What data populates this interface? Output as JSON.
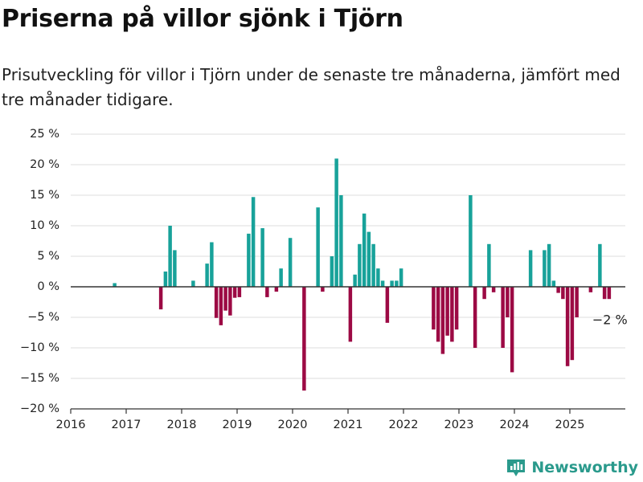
{
  "title": "Priserna på villor sjönk i Tjörn",
  "subtitle": "Prisutveckling för villor i Tjörn under de senaste tre månaderna, jämfört med tre månader tidigare.",
  "brand": {
    "name": "Newsworthy",
    "logo_icon": "newsworthy-logo-icon"
  },
  "colors": {
    "positive": "#18a29a",
    "negative": "#9c0a44",
    "grid": "#dddddd",
    "zero_line": "#333333"
  },
  "chart_data": {
    "type": "bar",
    "title": "",
    "xlabel": "",
    "ylabel": "",
    "ylim": [
      -20,
      25
    ],
    "yticks": [
      -20,
      -15,
      -10,
      -5,
      0,
      5,
      10,
      15,
      20,
      25
    ],
    "ytick_labels": [
      "−20 %",
      "−15 %",
      "−10 %",
      "−5 %",
      "0 %",
      "5 %",
      "10 %",
      "15 %",
      "20 %",
      "25 %"
    ],
    "xlim": [
      "2016-01",
      "2026-01"
    ],
    "xticks": [
      "2016",
      "2017",
      "2018",
      "2019",
      "2020",
      "2021",
      "2022",
      "2023",
      "2024",
      "2025"
    ],
    "grid": true,
    "end_label": "−2 %",
    "series": [
      {
        "points": [
          {
            "x": "2016-10",
            "y": 0.6
          },
          {
            "x": "2017-08",
            "y": -3.7
          },
          {
            "x": "2017-09",
            "y": 2.5
          },
          {
            "x": "2017-10",
            "y": 10.0
          },
          {
            "x": "2017-11",
            "y": 6.0
          },
          {
            "x": "2018-03",
            "y": 1.0
          },
          {
            "x": "2018-06",
            "y": 3.8
          },
          {
            "x": "2018-07",
            "y": 7.3
          },
          {
            "x": "2018-08",
            "y": -5.1
          },
          {
            "x": "2018-09",
            "y": -6.3
          },
          {
            "x": "2018-10",
            "y": -3.9
          },
          {
            "x": "2018-11",
            "y": -4.7
          },
          {
            "x": "2018-12",
            "y": -1.8
          },
          {
            "x": "2019-01",
            "y": -1.7
          },
          {
            "x": "2019-03",
            "y": 8.7
          },
          {
            "x": "2019-04",
            "y": 14.7
          },
          {
            "x": "2019-06",
            "y": 9.6
          },
          {
            "x": "2019-07",
            "y": -1.7
          },
          {
            "x": "2019-09",
            "y": -0.8
          },
          {
            "x": "2019-10",
            "y": 3.0
          },
          {
            "x": "2019-12",
            "y": 8.0
          },
          {
            "x": "2020-03",
            "y": -17.0
          },
          {
            "x": "2020-06",
            "y": 13.0
          },
          {
            "x": "2020-07",
            "y": -0.8
          },
          {
            "x": "2020-09",
            "y": 5.0
          },
          {
            "x": "2020-10",
            "y": 21.0
          },
          {
            "x": "2020-11",
            "y": 15.0
          },
          {
            "x": "2021-01",
            "y": -9.0
          },
          {
            "x": "2021-02",
            "y": 2.0
          },
          {
            "x": "2021-03",
            "y": 7.0
          },
          {
            "x": "2021-04",
            "y": 12.0
          },
          {
            "x": "2021-05",
            "y": 9.0
          },
          {
            "x": "2021-06",
            "y": 7.0
          },
          {
            "x": "2021-07",
            "y": 3.0
          },
          {
            "x": "2021-08",
            "y": 1.0
          },
          {
            "x": "2021-09",
            "y": -5.9
          },
          {
            "x": "2021-10",
            "y": 1.0
          },
          {
            "x": "2021-11",
            "y": 1.0
          },
          {
            "x": "2021-12",
            "y": 3.0
          },
          {
            "x": "2022-07",
            "y": -7.0
          },
          {
            "x": "2022-08",
            "y": -9.0
          },
          {
            "x": "2022-09",
            "y": -11.0
          },
          {
            "x": "2022-10",
            "y": -8.0
          },
          {
            "x": "2022-11",
            "y": -9.0
          },
          {
            "x": "2022-12",
            "y": -7.0
          },
          {
            "x": "2023-03",
            "y": 15.0
          },
          {
            "x": "2023-04",
            "y": -10.0
          },
          {
            "x": "2023-06",
            "y": -2.0
          },
          {
            "x": "2023-07",
            "y": 7.0
          },
          {
            "x": "2023-08",
            "y": -0.9
          },
          {
            "x": "2023-10",
            "y": -10.0
          },
          {
            "x": "2023-11",
            "y": -5.0
          },
          {
            "x": "2023-12",
            "y": -14.0
          },
          {
            "x": "2024-04",
            "y": 6.0
          },
          {
            "x": "2024-07",
            "y": 6.0
          },
          {
            "x": "2024-08",
            "y": 7.0
          },
          {
            "x": "2024-09",
            "y": 1.0
          },
          {
            "x": "2024-10",
            "y": -1.0
          },
          {
            "x": "2024-11",
            "y": -2.0
          },
          {
            "x": "2024-12",
            "y": -13.0
          },
          {
            "x": "2025-01",
            "y": -12.0
          },
          {
            "x": "2025-02",
            "y": -5.0
          },
          {
            "x": "2025-05",
            "y": -0.9
          },
          {
            "x": "2025-07",
            "y": 7.0
          },
          {
            "x": "2025-08",
            "y": -2.0
          },
          {
            "x": "2025-09",
            "y": -2.0
          }
        ]
      }
    ]
  }
}
